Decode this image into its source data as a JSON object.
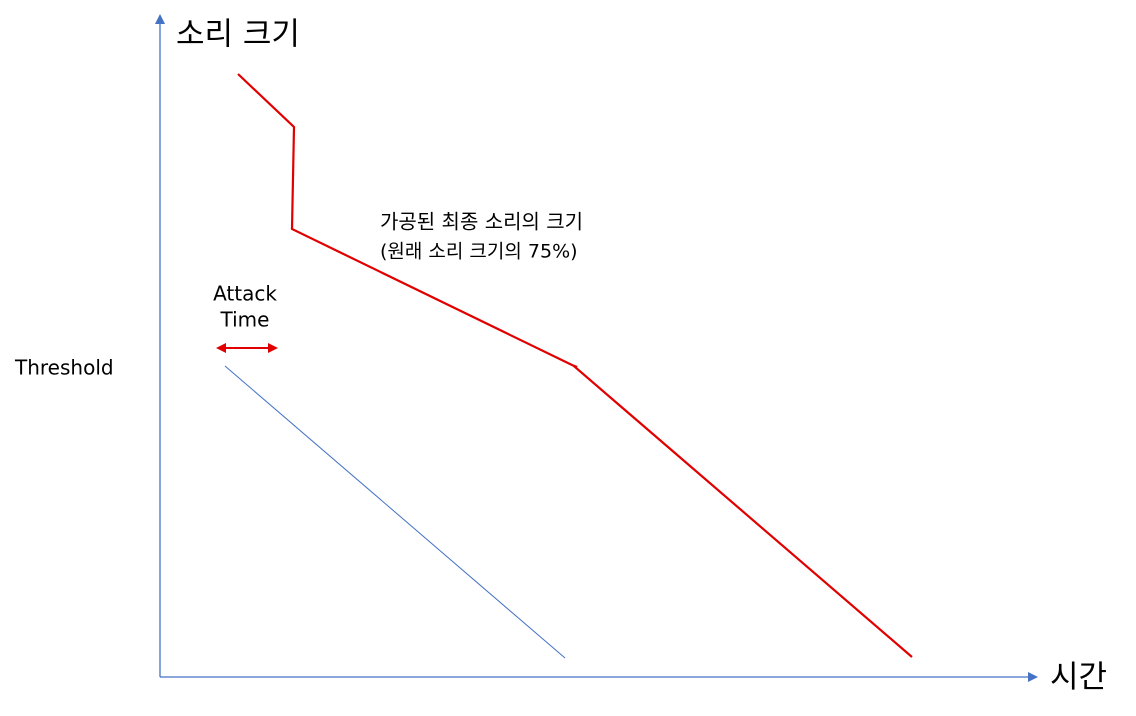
{
  "axes": {
    "y_label": "소리 크기",
    "x_label": "시간"
  },
  "annotation": {
    "lines": [
      "가공된 최종 소리의 크기",
      "(원래 소리 크기의 75%)"
    ]
  },
  "attack_time": {
    "lines": [
      "Attack",
      "Time"
    ]
  },
  "threshold": "Threshold"
}
